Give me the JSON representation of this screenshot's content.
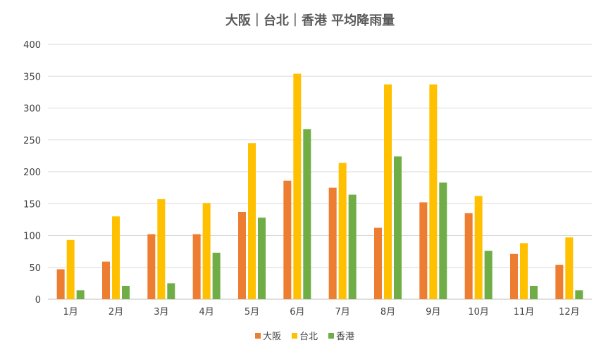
{
  "chart_data": {
    "type": "bar",
    "title": "大阪｜台北｜香港 平均降雨量",
    "xlabel": "",
    "ylabel": "",
    "categories": [
      "1月",
      "2月",
      "3月",
      "4月",
      "5月",
      "6月",
      "7月",
      "8月",
      "9月",
      "10月",
      "11月",
      "12月"
    ],
    "series": [
      {
        "name": "大阪",
        "color": "#ed7d31",
        "values": [
          47,
          59,
          102,
          102,
          137,
          186,
          175,
          112,
          152,
          135,
          71,
          54
        ]
      },
      {
        "name": "台北",
        "color": "#ffc000",
        "values": [
          93,
          130,
          157,
          151,
          245,
          354,
          214,
          337,
          337,
          162,
          88,
          97
        ]
      },
      {
        "name": "香港",
        "color": "#70ad47",
        "values": [
          14,
          21,
          25,
          73,
          128,
          267,
          164,
          224,
          183,
          76,
          21,
          14
        ]
      }
    ],
    "ylim": [
      0,
      400
    ],
    "yticks": [
      0,
      50,
      100,
      150,
      200,
      250,
      300,
      350,
      400
    ],
    "grid": true,
    "legend_position": "bottom"
  }
}
